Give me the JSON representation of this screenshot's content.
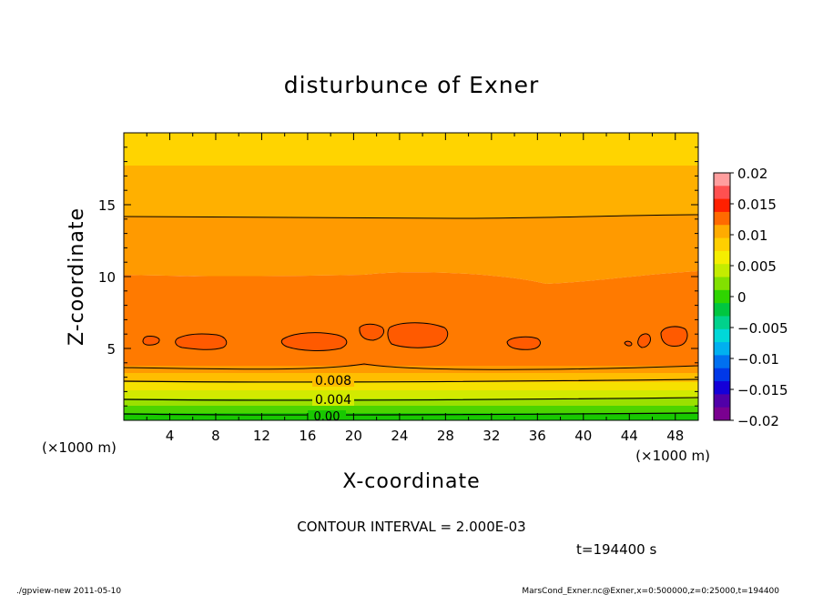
{
  "chart_data": {
    "type": "heatmap",
    "title": "disturbunce of Exner",
    "xlabel": "X-coordinate",
    "ylabel": "Z-coordinate",
    "x_unit_left": "(×1000 m)",
    "x_unit_right": "(×1000 m)",
    "xlim": [
      0,
      50
    ],
    "ylim": [
      0,
      20
    ],
    "x_ticks": [
      4,
      8,
      12,
      16,
      20,
      24,
      28,
      32,
      36,
      40,
      44,
      48
    ],
    "y_ticks": [
      5,
      10,
      15
    ],
    "colorbar": {
      "range": [
        -0.02,
        0.02
      ],
      "tick_labels": [
        "0.02",
        "0.015",
        "0.01",
        "0.005",
        "0",
        "−0.005",
        "−0.01",
        "−0.015",
        "−0.02"
      ],
      "tick_values": [
        0.02,
        0.015,
        0.01,
        0.005,
        0,
        -0.005,
        -0.01,
        -0.015,
        -0.02
      ],
      "colors": [
        "#ff9e9e",
        "#ff5050",
        "#ff2000",
        "#ff6a00",
        "#ffab00",
        "#ffcf00",
        "#f5ee00",
        "#c4ec00",
        "#82e000",
        "#2fd400",
        "#00c640",
        "#00d28c",
        "#00d8d8",
        "#00b0f0",
        "#0070f0",
        "#0038e8",
        "#1400d8",
        "#5000a8",
        "#7a0090"
      ]
    },
    "contour_labels": [
      {
        "text": "0.008",
        "z": 2.8
      },
      {
        "text": "0.004",
        "z": 1.5
      },
      {
        "text": "0.00",
        "z": 0.3
      }
    ],
    "contour_interval_text": "CONTOUR INTERVAL = 2.000E-03",
    "time_text": "t=194400 s",
    "footer_left": "./gpview-new   2011-05-10",
    "footer_right": "MarsCond_Exner.nc@Exner,x=0:500000,z=0:25000,t=194400"
  }
}
